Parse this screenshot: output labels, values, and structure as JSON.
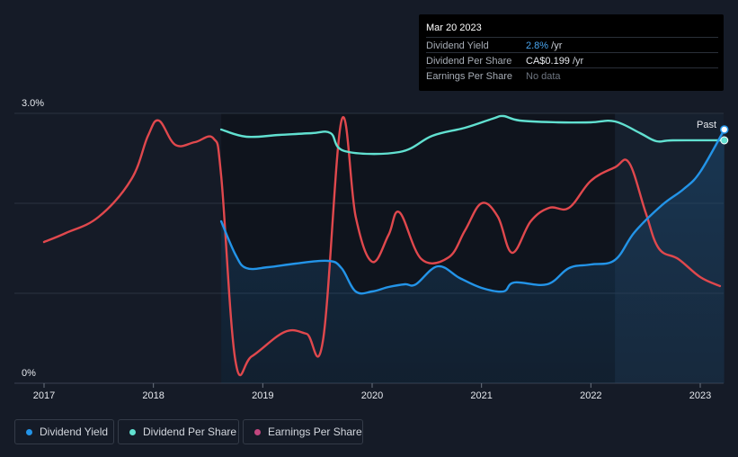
{
  "tooltip": {
    "date": "Mar 20 2023",
    "rows": [
      {
        "label": "Dividend Yield",
        "value": "2.8%",
        "unit": " /yr"
      },
      {
        "label": "Dividend Per Share",
        "value": "CA$0.199",
        "unit": " /yr"
      },
      {
        "label": "Earnings Per Share",
        "value": "No data",
        "unit": ""
      }
    ]
  },
  "legend": [
    {
      "label": "Dividend Yield",
      "color": "#2394e8"
    },
    {
      "label": "Dividend Per Share",
      "color": "#61e0d0"
    },
    {
      "label": "Earnings Per Share",
      "color": "#c2467e"
    }
  ],
  "chart_data": {
    "type": "line",
    "title": "",
    "xlabel": "",
    "ylabel": "",
    "y_ticks": [
      "3.0%",
      "0%"
    ],
    "ylim": [
      0,
      3.0
    ],
    "x_ticks": [
      "2017",
      "2018",
      "2019",
      "2020",
      "2021",
      "2022",
      "2023"
    ],
    "xlim": [
      2016.7,
      2023.22
    ],
    "forecast_start": 2022.22,
    "past_label": "Past",
    "colors": {
      "dividend_yield": "#2394e8",
      "dividend_per_share": "#61e0d0",
      "earnings_per_share": "#e0484d",
      "yield_fill": "#1b4f7b"
    },
    "series": [
      {
        "name": "Dividend Yield",
        "unit": "%",
        "points": [
          [
            2018.62,
            1.8
          ],
          [
            2018.75,
            1.43
          ],
          [
            2018.85,
            1.28
          ],
          [
            2019.05,
            1.29
          ],
          [
            2019.3,
            1.33
          ],
          [
            2019.6,
            1.36
          ],
          [
            2019.72,
            1.28
          ],
          [
            2019.85,
            1.02
          ],
          [
            2020.0,
            1.02
          ],
          [
            2020.15,
            1.07
          ],
          [
            2020.3,
            1.1
          ],
          [
            2020.4,
            1.1
          ],
          [
            2020.6,
            1.3
          ],
          [
            2020.8,
            1.17
          ],
          [
            2021.0,
            1.06
          ],
          [
            2021.2,
            1.02
          ],
          [
            2021.3,
            1.12
          ],
          [
            2021.6,
            1.1
          ],
          [
            2021.8,
            1.28
          ],
          [
            2022.0,
            1.32
          ],
          [
            2022.22,
            1.37
          ],
          [
            2022.4,
            1.68
          ],
          [
            2022.65,
            1.98
          ],
          [
            2022.85,
            2.16
          ],
          [
            2023.0,
            2.35
          ],
          [
            2023.22,
            2.82
          ]
        ]
      },
      {
        "name": "Dividend Per Share",
        "unit": "CA$",
        "points": [
          [
            2018.62,
            2.82
          ],
          [
            2018.85,
            2.74
          ],
          [
            2019.15,
            2.76
          ],
          [
            2019.45,
            2.78
          ],
          [
            2019.62,
            2.78
          ],
          [
            2019.75,
            2.58
          ],
          [
            2020.25,
            2.57
          ],
          [
            2020.55,
            2.75
          ],
          [
            2020.85,
            2.84
          ],
          [
            2021.1,
            2.94
          ],
          [
            2021.2,
            2.97
          ],
          [
            2021.35,
            2.92
          ],
          [
            2021.7,
            2.9
          ],
          [
            2022.0,
            2.9
          ],
          [
            2022.22,
            2.91
          ],
          [
            2022.45,
            2.78
          ],
          [
            2022.6,
            2.69
          ],
          [
            2022.75,
            2.7
          ],
          [
            2023.22,
            2.7
          ]
        ]
      },
      {
        "name": "Earnings Per Share",
        "unit": "CA$",
        "points": [
          [
            2017.0,
            1.57
          ],
          [
            2017.2,
            1.67
          ],
          [
            2017.5,
            1.85
          ],
          [
            2017.8,
            2.27
          ],
          [
            2017.95,
            2.75
          ],
          [
            2018.05,
            2.92
          ],
          [
            2018.2,
            2.65
          ],
          [
            2018.38,
            2.68
          ],
          [
            2018.55,
            2.72
          ],
          [
            2018.62,
            2.3
          ],
          [
            2018.75,
            0.25
          ],
          [
            2018.9,
            0.3
          ],
          [
            2019.2,
            0.57
          ],
          [
            2019.4,
            0.55
          ],
          [
            2019.55,
            0.47
          ],
          [
            2019.72,
            2.92
          ],
          [
            2019.85,
            1.85
          ],
          [
            2020.0,
            1.35
          ],
          [
            2020.15,
            1.65
          ],
          [
            2020.25,
            1.9
          ],
          [
            2020.45,
            1.38
          ],
          [
            2020.7,
            1.4
          ],
          [
            2020.85,
            1.7
          ],
          [
            2021.0,
            2.0
          ],
          [
            2021.15,
            1.85
          ],
          [
            2021.28,
            1.45
          ],
          [
            2021.45,
            1.8
          ],
          [
            2021.62,
            1.95
          ],
          [
            2021.8,
            1.95
          ],
          [
            2022.0,
            2.25
          ],
          [
            2022.22,
            2.4
          ],
          [
            2022.35,
            2.45
          ],
          [
            2022.5,
            1.9
          ],
          [
            2022.62,
            1.5
          ],
          [
            2022.8,
            1.38
          ],
          [
            2023.0,
            1.18
          ],
          [
            2023.18,
            1.08
          ]
        ]
      }
    ]
  }
}
